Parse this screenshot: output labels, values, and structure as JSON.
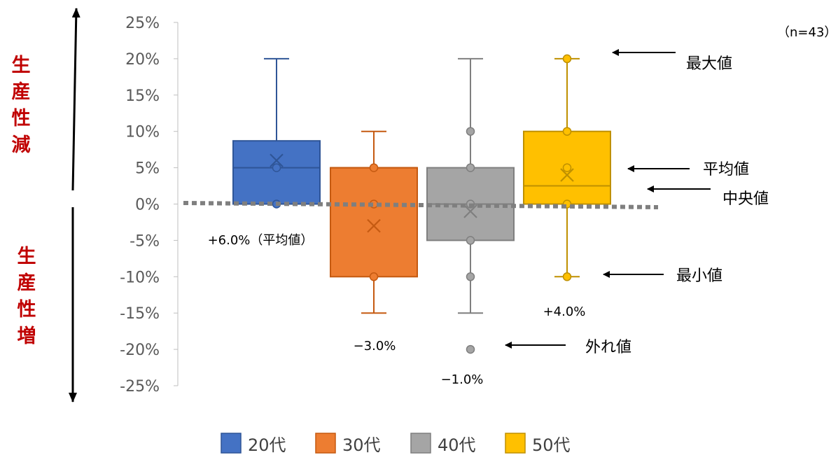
{
  "chart_data": {
    "type": "box",
    "sample_note": "（n=43）",
    "y_ticks": [
      "25%",
      "20%",
      "15%",
      "10%",
      "5%",
      "0%",
      "-5%",
      "-10%",
      "-15%",
      "-20%",
      "-25%"
    ],
    "ylim": [
      -25,
      25
    ],
    "side_labels": {
      "top": [
        "生",
        "産",
        "性",
        "減"
      ],
      "bottom": [
        "生",
        "産",
        "性",
        "増"
      ]
    },
    "series": [
      {
        "name": "20代",
        "color": "#4472c4",
        "stroke": "#2f5597",
        "min": 0,
        "q1": 0,
        "median": 5,
        "q3": 8.7,
        "max": 20,
        "mean": 6.0,
        "points": [
          0,
          5
        ],
        "mean_label": "+6.0%（平均値）"
      },
      {
        "name": "30代",
        "color": "#ed7d31",
        "stroke": "#c55a11",
        "min": -15,
        "q1": -10,
        "median": 5,
        "q3": 5,
        "max": 10,
        "mean": -3.0,
        "points": [
          5,
          0,
          -10
        ],
        "mean_label": "−3.0%"
      },
      {
        "name": "40代",
        "color": "#a5a5a5",
        "stroke": "#7f7f7f",
        "min": -15,
        "q1": -5,
        "median": 0,
        "q3": 5,
        "max": 20,
        "mean": -1.0,
        "points": [
          10,
          5,
          0,
          -5,
          -10
        ],
        "outliers": [
          -20
        ],
        "mean_label": "−1.0%"
      },
      {
        "name": "50代",
        "color": "#ffc000",
        "stroke": "#bf9000",
        "min": -10,
        "q1": 0,
        "median": 2.5,
        "q3": 10,
        "max": 20,
        "mean": 4.0,
        "points": [
          20,
          10,
          5,
          0,
          -10
        ],
        "mean_label": "+4.0%"
      }
    ],
    "annotations": [
      "最大値",
      "平均値",
      "中央値",
      "最小値",
      "外れ値"
    ],
    "legend": {
      "position": "bottom"
    }
  }
}
